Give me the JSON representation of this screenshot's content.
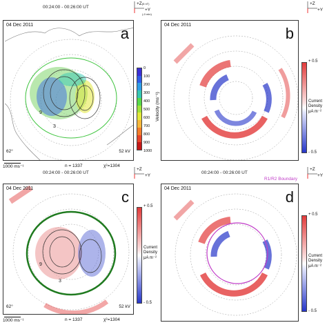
{
  "time_range": "00:24:00 - 00:26:00 UT",
  "date": "04 Dec 2011",
  "axes_glyph": {
    "z": "+Z",
    "z_unit": "(5 nT)",
    "y": "+Y",
    "y_unit": "(-0 min)"
  },
  "panels": {
    "a": {
      "letter": "a",
      "latitude": "62°",
      "kv": "52 kV",
      "scale": "1000 ms⁻¹",
      "n": "n = 1337",
      "chi": "χ²=1304"
    },
    "b": {
      "letter": "b"
    },
    "c": {
      "letter": "c",
      "latitude": "62°",
      "kv": "52 kV",
      "scale": "1000 ms⁻¹",
      "n": "n = 1337",
      "chi": "χ²=1304"
    },
    "d": {
      "letter": "d",
      "boundary_label": "R1/R2 Boundary"
    }
  },
  "velocity_bar": {
    "title": "Velocity (ms⁻¹)",
    "ticks": [
      "0",
      "100",
      "200",
      "300",
      "400",
      "500",
      "600",
      "700",
      "800",
      "900",
      "1000"
    ],
    "colors": [
      "#3a2fd6",
      "#2f5de8",
      "#2f9ee8",
      "#36c7b3",
      "#57d94a",
      "#9fe23a",
      "#e2e83a",
      "#f6b83a",
      "#f47c2a",
      "#e8432a",
      "#c41818"
    ]
  },
  "current_bar": {
    "title_1": "Current",
    "title_2": "Density",
    "unit": "μA m⁻²",
    "top": "+ 0.5",
    "bottom": "- 0.5"
  },
  "colors": {
    "red": "#e23b3b",
    "blue": "#2636c9",
    "green_boundary": "#1f7a1f",
    "magenta": "#c03cc8"
  }
}
